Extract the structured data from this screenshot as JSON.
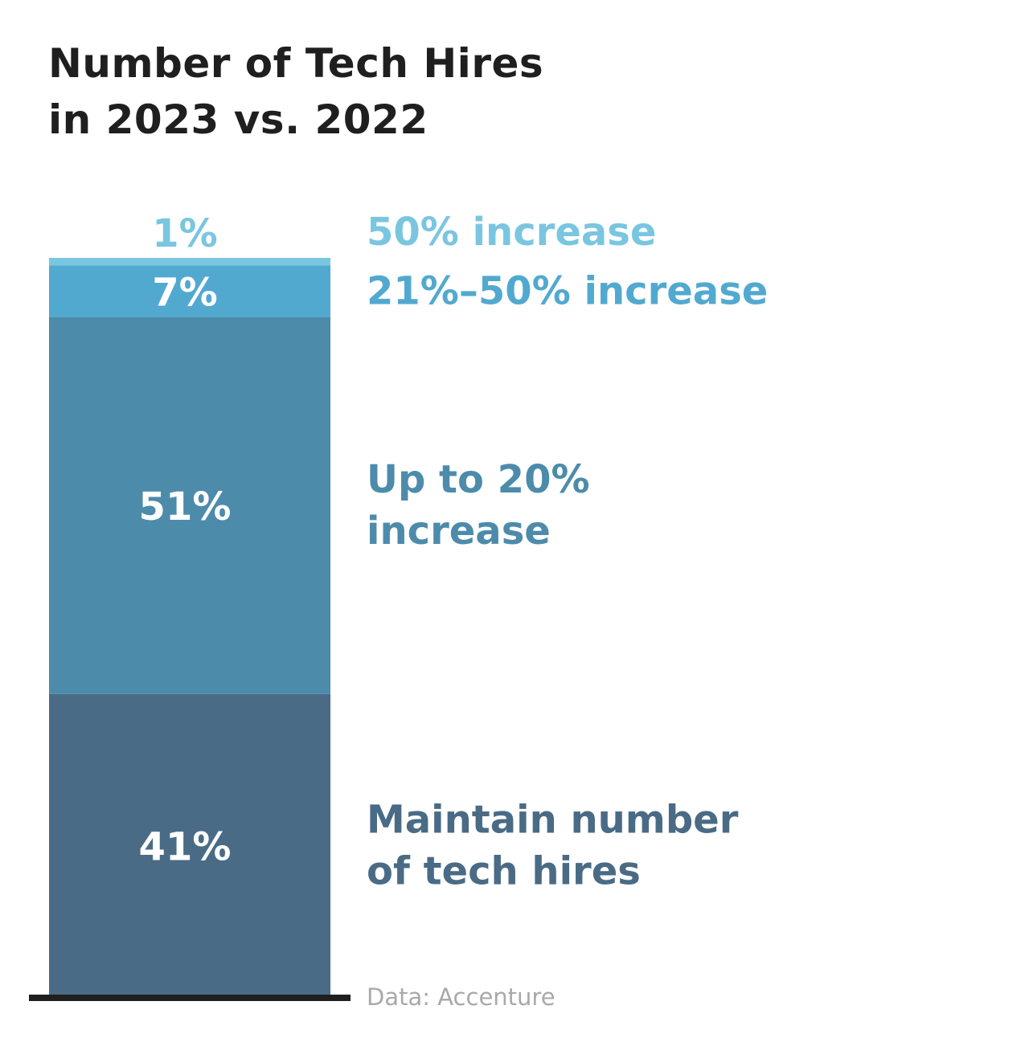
{
  "title_line1": "Number of Tech Hires",
  "title_line2": "in 2023 vs. 2022",
  "source": "Data: Accenture",
  "chart_data": {
    "type": "bar",
    "stacked": true,
    "categories": [
      ""
    ],
    "ylim": [
      0,
      100
    ],
    "grid": false,
    "legend": "right",
    "series": [
      {
        "name": "Maintain number of tech hires",
        "label_lines": [
          "Maintain number",
          "of tech hires"
        ],
        "value": 41,
        "value_label": "41%",
        "color": "#4a6b85",
        "label_color": "#4a6b85"
      },
      {
        "name": "Up to 20% increase",
        "label_lines": [
          "Up to 20%",
          "increase"
        ],
        "value": 51,
        "value_label": "51%",
        "color": "#4d8bab",
        "label_color": "#4d8bab"
      },
      {
        "name": "21%–50% increase",
        "label_lines": [
          "21%–50% increase"
        ],
        "value": 7,
        "value_label": "7%",
        "color": "#52a9d0",
        "label_color": "#52a9d0"
      },
      {
        "name": "50% increase",
        "label_lines": [
          "50% increase"
        ],
        "value": 1,
        "value_label": "1%",
        "color": "#7ac6e0",
        "label_color": "#7ac6e0"
      }
    ]
  }
}
